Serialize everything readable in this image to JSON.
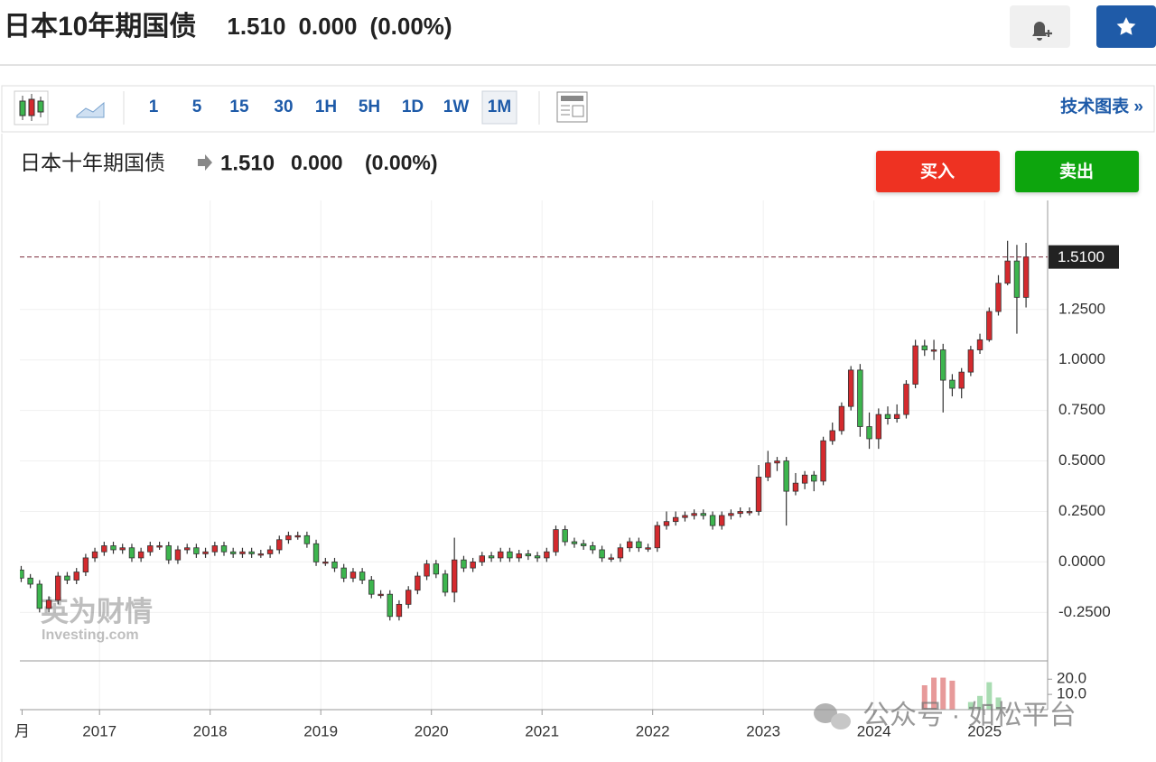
{
  "header": {
    "title": "日本10年期国债",
    "price": "1.510",
    "change": "0.000",
    "change_pct": "(0.00%)"
  },
  "toolbar": {
    "intervals": [
      "1",
      "5",
      "15",
      "30",
      "1H",
      "5H",
      "1D",
      "1W",
      "1M"
    ],
    "active": "1M",
    "right_link": "技术图表 »"
  },
  "chart_header": {
    "title": "日本十年期国债",
    "price": "1.510",
    "change": "0.000",
    "change_pct": "(0.00%)"
  },
  "buttons": {
    "buy": "买入",
    "sell": "卖出"
  },
  "watermark": {
    "logo_cn": "英为财情",
    "logo_en": "Investing.com",
    "wechat": "公众号 · 如松平台"
  },
  "chart_data": {
    "type": "candlestick",
    "x": [
      2016.292,
      2016.375,
      2016.458,
      2016.542,
      2016.625,
      2016.708,
      2016.792,
      2016.875,
      2016.958,
      2017.042,
      2017.125,
      2017.208,
      2017.292,
      2017.375,
      2017.458,
      2017.542,
      2017.625,
      2017.708,
      2017.792,
      2017.875,
      2017.958,
      2018.042,
      2018.125,
      2018.208,
      2018.292,
      2018.375,
      2018.458,
      2018.542,
      2018.625,
      2018.708,
      2018.792,
      2018.875,
      2018.958,
      2019.042,
      2019.125,
      2019.208,
      2019.292,
      2019.375,
      2019.458,
      2019.542,
      2019.625,
      2019.708,
      2019.792,
      2019.875,
      2019.958,
      2020.042,
      2020.125,
      2020.208,
      2020.292,
      2020.375,
      2020.458,
      2020.542,
      2020.625,
      2020.708,
      2020.792,
      2020.875,
      2020.958,
      2021.042,
      2021.125,
      2021.208,
      2021.292,
      2021.375,
      2021.458,
      2021.542,
      2021.625,
      2021.708,
      2021.792,
      2021.875,
      2021.958,
      2022.042,
      2022.125,
      2022.208,
      2022.292,
      2022.375,
      2022.458,
      2022.542,
      2022.625,
      2022.708,
      2022.792,
      2022.875,
      2022.958,
      2023.042,
      2023.125,
      2023.208,
      2023.292,
      2023.375,
      2023.458,
      2023.542,
      2023.625,
      2023.708,
      2023.792,
      2023.875,
      2023.958,
      2024.042,
      2024.125,
      2024.208,
      2024.292,
      2024.375,
      2024.458,
      2024.542,
      2024.625,
      2024.708,
      2024.792,
      2024.875,
      2024.958,
      2025.042,
      2025.125,
      2025.208,
      2025.292,
      2025.375
    ],
    "open": [
      -0.04,
      -0.08,
      -0.11,
      -0.23,
      -0.19,
      -0.07,
      -0.09,
      -0.05,
      0.02,
      0.05,
      0.08,
      0.06,
      0.07,
      0.02,
      0.05,
      0.08,
      0.08,
      0.01,
      0.06,
      0.07,
      0.04,
      0.05,
      0.08,
      0.05,
      0.04,
      0.05,
      0.04,
      0.04,
      0.06,
      0.11,
      0.13,
      0.13,
      0.09,
      0,
      0,
      -0.03,
      -0.08,
      -0.05,
      -0.09,
      -0.16,
      -0.16,
      -0.27,
      -0.21,
      -0.14,
      -0.07,
      -0.01,
      -0.06,
      -0.15,
      0.01,
      -0.03,
      0,
      0.03,
      0.02,
      0.05,
      0.02,
      0.04,
      0.03,
      0.02,
      0.05,
      0.16,
      0.1,
      0.09,
      0.08,
      0.06,
      0.02,
      0.02,
      0.07,
      0.1,
      0.07,
      0.07,
      0.18,
      0.2,
      0.22,
      0.23,
      0.24,
      0.23,
      0.18,
      0.23,
      0.24,
      0.25,
      0.25,
      0.42,
      0.49,
      0.5,
      0.35,
      0.39,
      0.43,
      0.4,
      0.6,
      0.65,
      0.77,
      0.95,
      0.67,
      0.61,
      0.73,
      0.71,
      0.73,
      0.88,
      1.07,
      1.05,
      1.05,
      0.9,
      0.86,
      0.94,
      1.05,
      1.1,
      1.24,
      1.38,
      1.49,
      1.31
    ],
    "high": [
      -0.02,
      -0.06,
      -0.09,
      -0.17,
      -0.05,
      -0.05,
      -0.03,
      0.04,
      0.07,
      0.1,
      0.1,
      0.09,
      0.09,
      0.07,
      0.1,
      0.1,
      0.1,
      0.08,
      0.09,
      0.09,
      0.07,
      0.1,
      0.1,
      0.07,
      0.07,
      0.07,
      0.06,
      0.08,
      0.13,
      0.15,
      0.15,
      0.15,
      0.11,
      0.02,
      0.02,
      -0.01,
      -0.03,
      -0.03,
      -0.07,
      -0.14,
      -0.14,
      -0.19,
      -0.12,
      -0.05,
      0.01,
      0.01,
      -0.04,
      0.12,
      0.03,
      0.02,
      0.05,
      0.05,
      0.07,
      0.07,
      0.06,
      0.06,
      0.05,
      0.07,
      0.18,
      0.18,
      0.12,
      0.11,
      0.1,
      0.08,
      0.04,
      0.09,
      0.12,
      0.12,
      0.09,
      0.2,
      0.25,
      0.25,
      0.25,
      0.26,
      0.26,
      0.25,
      0.25,
      0.26,
      0.27,
      0.27,
      0.48,
      0.55,
      0.52,
      0.52,
      0.44,
      0.45,
      0.45,
      0.62,
      0.69,
      0.79,
      0.97,
      0.98,
      0.74,
      0.76,
      0.77,
      0.78,
      0.9,
      1.1,
      1.1,
      1.1,
      1.08,
      0.93,
      0.96,
      1.07,
      1.13,
      1.26,
      1.42,
      1.59,
      1.57,
      1.58
    ],
    "low": [
      -0.1,
      -0.13,
      -0.25,
      -0.25,
      -0.21,
      -0.11,
      -0.11,
      -0.07,
      0,
      0.03,
      0.04,
      0.04,
      0,
      0,
      0.03,
      0.06,
      -0.01,
      -0.01,
      0.04,
      0.02,
      0.02,
      0.03,
      0.03,
      0.02,
      0.02,
      0.02,
      0.02,
      0.02,
      0.04,
      0.09,
      0.11,
      0.07,
      -0.02,
      -0.02,
      -0.05,
      -0.1,
      -0.1,
      -0.11,
      -0.18,
      -0.18,
      -0.29,
      -0.29,
      -0.23,
      -0.16,
      -0.09,
      -0.08,
      -0.17,
      -0.2,
      -0.05,
      -0.05,
      -0.02,
      0,
      0,
      0,
      0,
      0.01,
      0,
      0,
      0.03,
      0.08,
      0.07,
      0.06,
      0.04,
      0,
      0,
      0,
      0.05,
      0.05,
      0.05,
      0.05,
      0.16,
      0.18,
      0.2,
      0.21,
      0.21,
      0.16,
      0.16,
      0.21,
      0.22,
      0.23,
      0.23,
      0.4,
      0.45,
      0.18,
      0.33,
      0.36,
      0.35,
      0.38,
      0.58,
      0.63,
      0.75,
      0.62,
      0.56,
      0.56,
      0.68,
      0.69,
      0.71,
      0.86,
      1.02,
      1.0,
      0.74,
      0.82,
      0.81,
      0.92,
      1.03,
      1.09,
      1.22,
      1.37,
      1.13,
      1.26
    ],
    "close": [
      -0.08,
      -0.11,
      -0.23,
      -0.19,
      -0.07,
      -0.09,
      -0.05,
      0.02,
      0.05,
      0.08,
      0.06,
      0.07,
      0.02,
      0.05,
      0.08,
      0.08,
      0.01,
      0.06,
      0.07,
      0.04,
      0.05,
      0.08,
      0.05,
      0.04,
      0.05,
      0.04,
      0.04,
      0.06,
      0.11,
      0.13,
      0.13,
      0.09,
      0,
      0,
      -0.03,
      -0.08,
      -0.05,
      -0.09,
      -0.16,
      -0.16,
      -0.27,
      -0.21,
      -0.14,
      -0.07,
      -0.01,
      -0.06,
      -0.15,
      0.01,
      -0.03,
      0,
      0.03,
      0.02,
      0.05,
      0.02,
      0.04,
      0.03,
      0.02,
      0.05,
      0.16,
      0.1,
      0.09,
      0.08,
      0.06,
      0.02,
      0.02,
      0.07,
      0.1,
      0.07,
      0.07,
      0.18,
      0.2,
      0.22,
      0.23,
      0.24,
      0.23,
      0.18,
      0.23,
      0.24,
      0.25,
      0.25,
      0.42,
      0.49,
      0.5,
      0.35,
      0.39,
      0.43,
      0.4,
      0.6,
      0.65,
      0.77,
      0.95,
      0.67,
      0.61,
      0.73,
      0.71,
      0.73,
      0.88,
      1.07,
      1.05,
      1.05,
      0.9,
      0.86,
      0.94,
      1.05,
      1.1,
      1.24,
      1.38,
      1.49,
      1.31,
      1.51
    ],
    "up_color": "#d42a2e",
    "down_color": "#3db54e",
    "xlim": [
      2016.28,
      2025.57
    ],
    "ylim": [
      -0.49,
      1.79
    ],
    "xticks": [
      {
        "value": 2016.3,
        "label": "月"
      },
      2017,
      2018,
      2019,
      2020,
      2021,
      2022,
      2023,
      2024,
      2025
    ],
    "yticks": [
      {
        "value": -0.25,
        "label": "-0.2500"
      },
      {
        "value": 0,
        "label": "0.0000"
      },
      {
        "value": 0.25,
        "label": "0.2500"
      },
      {
        "value": 0.5,
        "label": "0.5000"
      },
      {
        "value": 0.75,
        "label": "0.7500"
      },
      {
        "value": 1,
        "label": "1.0000"
      },
      {
        "value": 1.25,
        "label": "1.2500"
      }
    ],
    "last_price": {
      "value": 1.51,
      "label": "1.5100"
    },
    "grid": true,
    "volume": {
      "x": [
        2024.458,
        2024.542,
        2024.625,
        2024.708,
        2024.875,
        2024.958,
        2025.042,
        2025.125
      ],
      "values": [
        16,
        21,
        21,
        19,
        5,
        9,
        18,
        8
      ],
      "colors": [
        "#e79a9a",
        "#e79a9a",
        "#e79a9a",
        "#e79a9a",
        "#a9dcb2",
        "#a9dcb2",
        "#a9dcb2",
        "#a9dcb2"
      ],
      "ylim": [
        0,
        32
      ],
      "yticks": [
        {
          "value": 20,
          "label": "20.0"
        },
        {
          "value": 10,
          "label": "10.0"
        }
      ]
    }
  }
}
